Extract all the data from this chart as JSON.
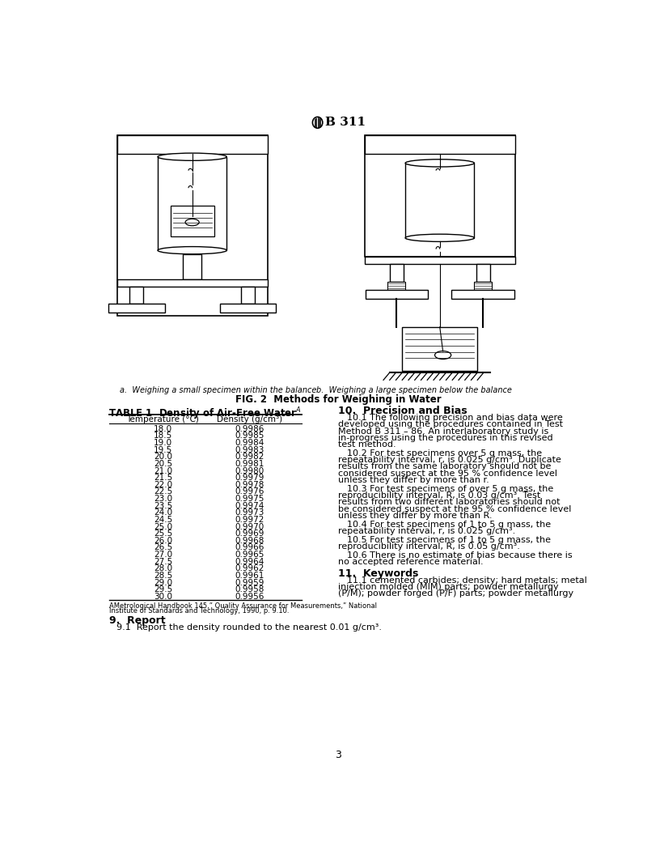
{
  "page_title": "B 311",
  "fig_caption_a": "a.  Weighing a small specimen within the balance",
  "fig_caption_b": "b.  Weighing a large specimen below the balance",
  "fig_title": "FIG. 2  Methods for Weighing in Water",
  "table_title": "TABLE 1  Density of Air-Free Water",
  "table_superscript": "A",
  "col1_header": "Temperature (°C)",
  "col2_header": "Density (g/cm³)",
  "temperatures": [
    18.0,
    18.5,
    19.0,
    19.5,
    20.0,
    20.5,
    21.0,
    21.5,
    22.0,
    22.5,
    23.0,
    23.5,
    24.0,
    24.5,
    25.0,
    25.5,
    26.0,
    26.5,
    27.0,
    27.5,
    28.0,
    28.5,
    29.0,
    29.5,
    30.0
  ],
  "densities": [
    "0.9986",
    "0.9985",
    "0.9984",
    "0.9983",
    "0.9982",
    "0.9981",
    "0.9980",
    "0.9979",
    "0.9978",
    "0.9976",
    "0.9975",
    "0.9974",
    "0.9973",
    "0.9972",
    "0.9970",
    "0.9969",
    "0.9968",
    "0.9966",
    "0.9965",
    "0.9964",
    "0.9962",
    "0.9961",
    "0.9959",
    "0.9958",
    "0.9956"
  ],
  "table_footnote_line1": "AMetrological Handbook 145,” Quality Assurance for Measurements,” National",
  "table_footnote_line2": "Institute of Standards and Technology, 1990, p. 9.10.",
  "section9_title": "9.  Report",
  "section9_p1": "9.1  Report the density rounded to the nearest 0.01 g/cm³.",
  "section10_title": "10.  Precision and Bias",
  "section10_p1": "10.1  The following precision and bias data were developed using the procedures contained in Test Method B 311 – 86. An interlaboratory study is in-progress using the procedures in this revised test method.",
  "section10_p2": "10.2  For test specimens over 5 g mass, the repeatability interval, r, is 0.025 g/cm³. Duplicate results from the same laboratory should not be considered suspect at the 95 % confidence level unless they differ by more than r.",
  "section10_p3": "10.3  For test specimens of over 5 g mass, the reproducibility interval, R, is 0.03 g/cm³. Test results from two different laboratories should not be considered suspect at the 95 % confidence level unless they differ by more than R.",
  "section10_p4": "10.4  For test specimens of 1 to 5 g mass, the repeatability interval, r, is 0.025 g/cm³.",
  "section10_p5": "10.5  For test specimens of 1 to 5 g mass, the reproducibility interval, R, is 0.05 g/cm³.",
  "section10_p6": "10.6  There is no estimate of bias because there is no accepted reference material.",
  "section11_title": "11.  Keywords",
  "section11_p1": "11.1  cemented carbides; density; hard metals; metal injection molded (MIM) parts; powder metallurgy (P/M); powder forged (P/F) parts; powder metallurgy",
  "page_number": "3",
  "bg_color": "#ffffff",
  "text_color": "#000000"
}
